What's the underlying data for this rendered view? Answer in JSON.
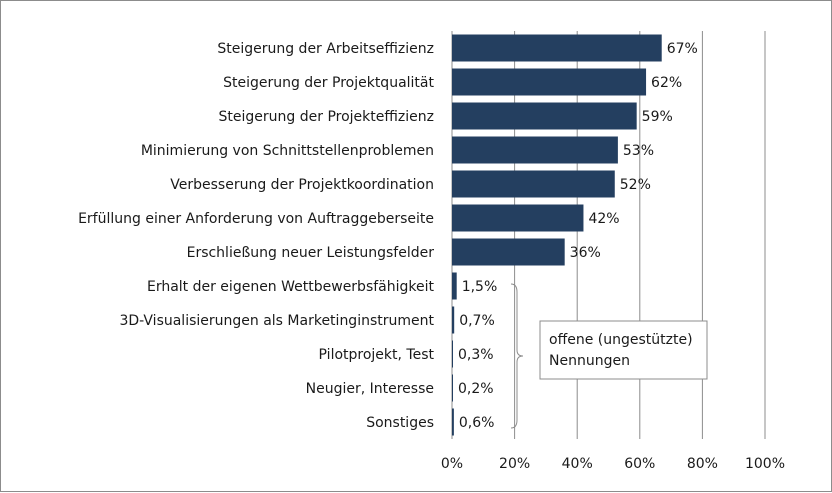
{
  "chart_data": {
    "type": "bar",
    "orientation": "horizontal",
    "categories": [
      "Steigerung der Arbeitseffizienz",
      "Steigerung der Projektqualität",
      "Steigerung der Projekteffizienz",
      "Minimierung von Schnittstellenproblemen",
      "Verbesserung der Projektkoordination",
      "Erfüllung einer Anforderung von Auftraggeberseite",
      "Erschließung neuer Leistungsfelder",
      "Erhalt der eigenen Wettbewerbsfähigkeit",
      "3D-Visualisierungen als Marketinginstrument",
      "Pilotprojekt, Test",
      "Neugier, Interesse",
      "Sonstiges"
    ],
    "values": [
      67,
      62,
      59,
      53,
      52,
      42,
      36,
      1.5,
      0.7,
      0.3,
      0.2,
      0.6
    ],
    "value_labels": [
      "67%",
      "62%",
      "59%",
      "53%",
      "52%",
      "42%",
      "36%",
      "1,5%",
      "0,7%",
      "0,3%",
      "0,2%",
      "0,6%"
    ],
    "xlim": [
      0,
      100
    ],
    "x_ticks": [
      "0%",
      "20%",
      "40%",
      "60%",
      "80%",
      "100%"
    ],
    "grid": "vertical",
    "bar_color": "#243f60",
    "annotation": {
      "lines": [
        "offene (ungestützte)",
        "Nennungen"
      ],
      "applies_to": [
        "Erhalt der eigenen Wettbewerbsfähigkeit",
        "3D-Visualisierungen als Marketinginstrument",
        "Pilotprojekt, Test",
        "Neugier, Interesse",
        "Sonstiges"
      ]
    }
  }
}
